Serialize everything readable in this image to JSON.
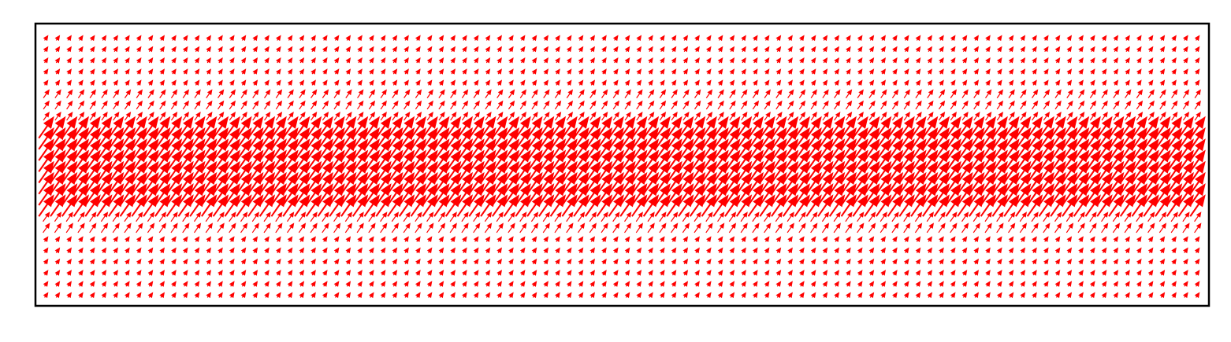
{
  "chart_data": {
    "type": "quiver",
    "title": "",
    "xlabel": "",
    "ylabel": "",
    "axes_ticks": false,
    "grid": false,
    "legend": false,
    "arrow_color": "#ff0000",
    "frame_color": "#000000",
    "grid_shape": {
      "columns": 100,
      "rows": 24
    },
    "field": {
      "direction_deg": 55,
      "description_levels": [
        {
          "row_range": [
            0,
            4
          ],
          "magnitude": 0.25
        },
        {
          "row_range": [
            5,
            7
          ],
          "magnitude": 0.4
        },
        {
          "row_range": [
            8,
            15
          ],
          "magnitude": 1.0
        },
        {
          "row_range": [
            16,
            17
          ],
          "magnitude": 0.45
        },
        {
          "row_range": [
            18,
            23
          ],
          "magnitude": 0.25
        }
      ]
    }
  }
}
